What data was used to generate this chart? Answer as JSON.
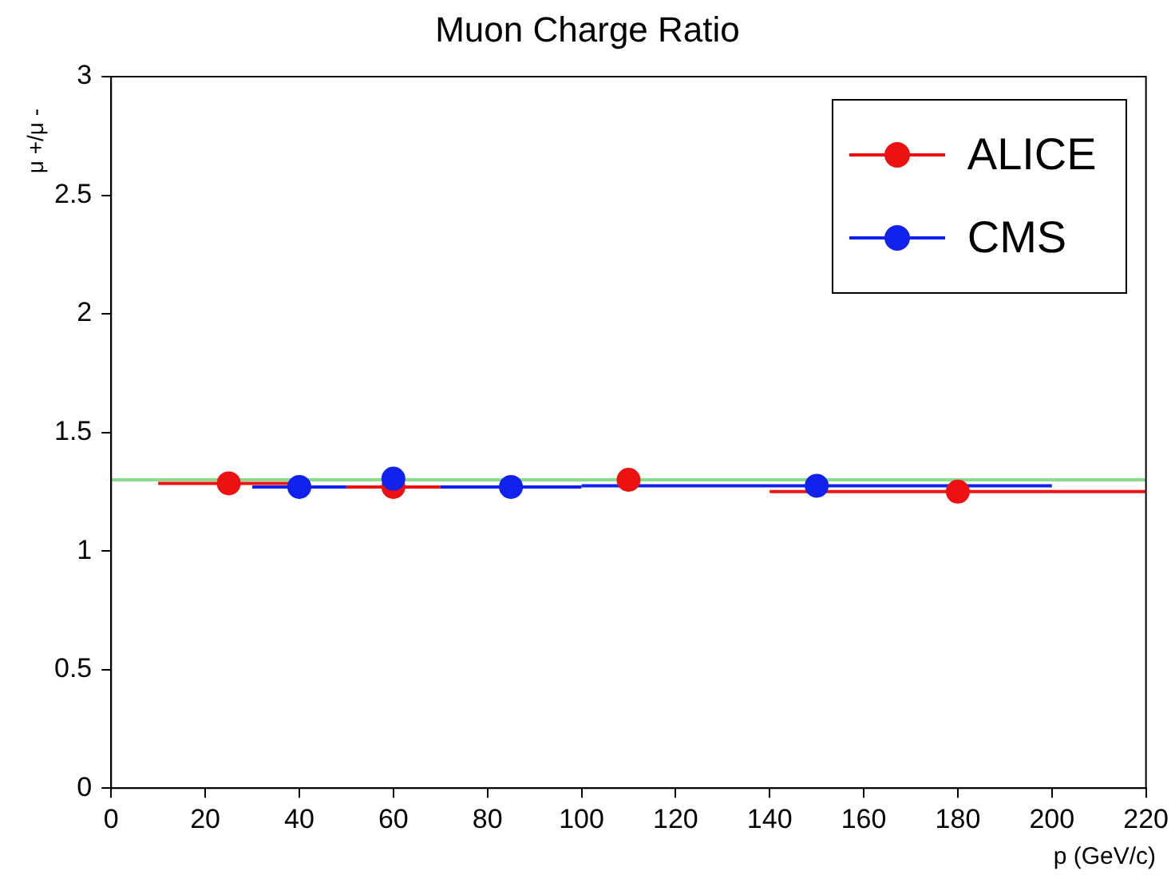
{
  "chart_data": {
    "type": "scatter",
    "title": "Muon Charge Ratio",
    "xlabel": "p (GeV/c)",
    "ylabel": "μ +/μ -",
    "xlim": [
      0,
      220
    ],
    "xticks": [
      0,
      20,
      40,
      60,
      80,
      100,
      120,
      140,
      160,
      180,
      200,
      220
    ],
    "ylim": [
      0,
      3
    ],
    "yticks": [
      0,
      0.5,
      1,
      1.5,
      2,
      2.5,
      3
    ],
    "grid": false,
    "legend": "top right",
    "marker": "circle",
    "series": [
      {
        "name": "ALICE",
        "color": "#ee1111",
        "x": [
          25,
          60,
          110,
          180
        ],
        "values": [
          1.285,
          1.27,
          1.3,
          1.25
        ],
        "errors": [
          null,
          null,
          0.03,
          0.03
        ],
        "xerrors": [
          15,
          10,
          null,
          40
        ]
      },
      {
        "name": "CMS",
        "color": "#1122ee",
        "x": [
          40,
          60,
          85,
          150
        ],
        "values": [
          1.27,
          1.305,
          1.27,
          1.275
        ],
        "errors": [
          null,
          null,
          null,
          0.025
        ],
        "xerrors": [
          10,
          null,
          [
            70,
            100
          ],
          50
        ]
      }
    ],
    "ref_lines": [
      {
        "axis": "y",
        "value": 1.3,
        "color": "#88dd88"
      }
    ]
  }
}
